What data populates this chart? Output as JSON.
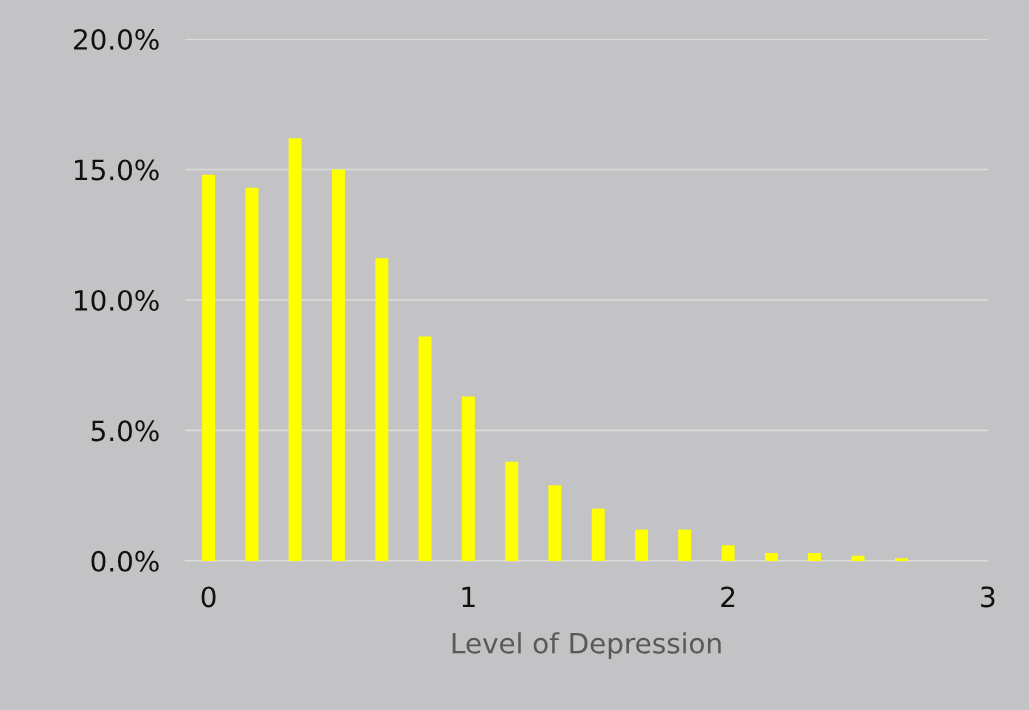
{
  "chart_data": {
    "type": "bar",
    "xlabel": "Level of Depression",
    "x": [
      0,
      0.167,
      0.333,
      0.5,
      0.667,
      0.833,
      1,
      1.167,
      1.333,
      1.5,
      1.667,
      1.833,
      2,
      2.167,
      2.333,
      2.5,
      2.667
    ],
    "values": [
      14.8,
      14.3,
      16.2,
      15.0,
      11.6,
      8.6,
      6.3,
      3.8,
      2.9,
      2.0,
      1.2,
      1.2,
      0.6,
      0.3,
      0.3,
      0.2,
      0.1
    ],
    "color": "#ffff00",
    "xlim": [
      -0.09,
      3.0
    ],
    "xticks": [
      0,
      1,
      2,
      3
    ],
    "ylim": [
      0,
      20
    ],
    "yticks": [
      {
        "value": 0,
        "label": "0.0%"
      },
      {
        "value": 5,
        "label": "5.0%"
      },
      {
        "value": 10,
        "label": "10.0%"
      },
      {
        "value": 15,
        "label": "15.0%"
      },
      {
        "value": 20,
        "label": "20.0%"
      }
    ],
    "grid": "y",
    "legend": false
  }
}
